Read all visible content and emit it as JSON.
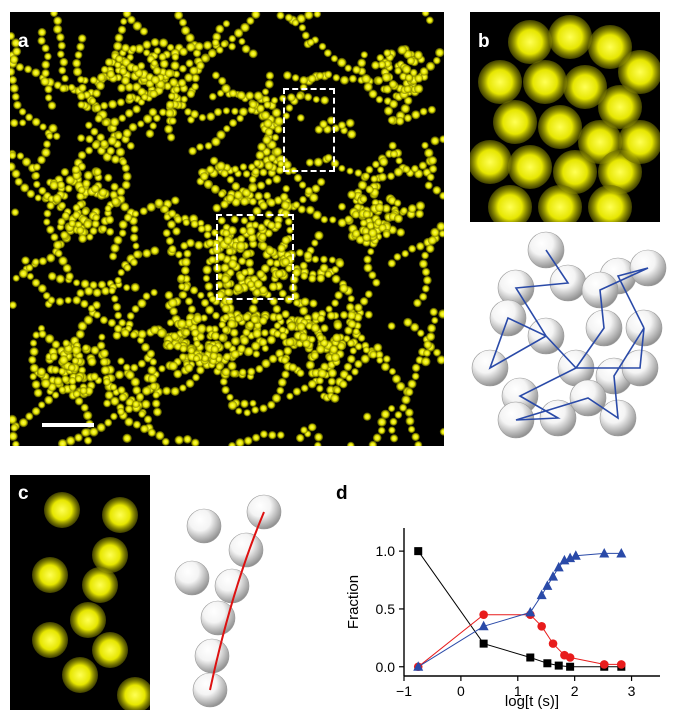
{
  "panels": {
    "a": {
      "label": "a"
    },
    "b": {
      "label": "b"
    },
    "c": {
      "label": "c"
    },
    "d": {
      "label": "d"
    }
  },
  "colors": {
    "particle": "#e6e600",
    "particle_bright": "#ffff55",
    "background": "#000000",
    "sphere_light": "#f4f4f4",
    "sphere_dark": "#8f8f8f",
    "network_line": "#2a4aa8",
    "chain_line": "#dd1111"
  },
  "chart_data": {
    "type": "line",
    "xlabel": "log[t (s)]",
    "ylabel": "Fraction",
    "xlim": [
      -1.0,
      3.5
    ],
    "ylim": [
      -0.08,
      1.2
    ],
    "xticks": [
      "−1",
      "0",
      "1",
      "2",
      "3"
    ],
    "yticks": [
      "0.0",
      "0.5",
      "1.0"
    ],
    "series": [
      {
        "marker": "square",
        "color": "#000000",
        "x": [
          -0.75,
          0.4,
          1.22,
          1.52,
          1.72,
          1.92,
          2.52,
          2.82
        ],
        "y": [
          1.0,
          0.2,
          0.08,
          0.03,
          0.01,
          0.0,
          0.0,
          0.0
        ]
      },
      {
        "marker": "circle",
        "color": "#e81c1c",
        "x": [
          -0.75,
          0.4,
          1.22,
          1.42,
          1.62,
          1.82,
          1.92,
          2.52,
          2.82
        ],
        "y": [
          0.0,
          0.45,
          0.45,
          0.35,
          0.2,
          0.1,
          0.08,
          0.02,
          0.02
        ]
      },
      {
        "marker": "triangle",
        "color": "#2a4aa8",
        "x": [
          -0.75,
          0.4,
          1.22,
          1.42,
          1.52,
          1.62,
          1.72,
          1.82,
          1.92,
          2.02,
          2.52,
          2.82
        ],
        "y": [
          0.0,
          0.35,
          0.47,
          0.62,
          0.7,
          0.78,
          0.86,
          0.92,
          0.94,
          0.96,
          0.98,
          0.98
        ]
      }
    ]
  }
}
